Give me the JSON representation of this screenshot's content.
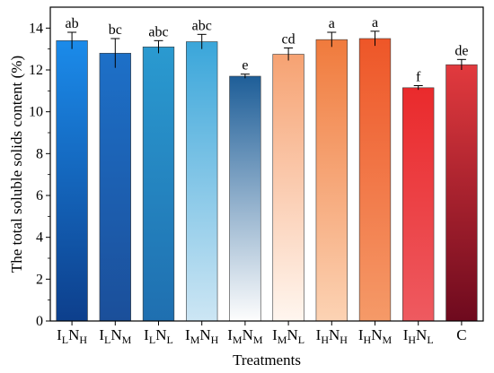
{
  "chart_data": {
    "type": "bar",
    "xlabel": "Treatments",
    "ylabel": "The total soluble solids content (%)",
    "ylim": [
      0,
      15
    ],
    "yticks": [
      0,
      2,
      4,
      6,
      8,
      10,
      12,
      14
    ],
    "grid": false,
    "categories": [
      {
        "main": "I",
        "sub1": "L",
        "mid": "N",
        "sub2": "H"
      },
      {
        "main": "I",
        "sub1": "L",
        "mid": "N",
        "sub2": "M"
      },
      {
        "main": "I",
        "sub1": "L",
        "mid": "N",
        "sub2": "L"
      },
      {
        "main": "I",
        "sub1": "M",
        "mid": "N",
        "sub2": "H"
      },
      {
        "main": "I",
        "sub1": "M",
        "mid": "N",
        "sub2": "M"
      },
      {
        "main": "I",
        "sub1": "M",
        "mid": "N",
        "sub2": "L"
      },
      {
        "main": "I",
        "sub1": "H",
        "mid": "N",
        "sub2": "H"
      },
      {
        "main": "I",
        "sub1": "H",
        "mid": "N",
        "sub2": "M"
      },
      {
        "main": "I",
        "sub1": "H",
        "mid": "N",
        "sub2": "L"
      },
      {
        "main": "C",
        "sub1": "",
        "mid": "",
        "sub2": ""
      }
    ],
    "values": [
      13.4,
      12.8,
      13.1,
      13.35,
      11.7,
      12.75,
      13.45,
      13.5,
      11.15,
      12.25
    ],
    "errors": [
      0.4,
      0.7,
      0.3,
      0.35,
      0.1,
      0.3,
      0.35,
      0.35,
      0.1,
      0.25
    ],
    "significance": [
      "ab",
      "bc",
      "abc",
      "abc",
      "e",
      "cd",
      "a",
      "a",
      "f",
      "de"
    ],
    "colors": [
      {
        "top": "#1b8bea",
        "bottom": "#0d3f8c"
      },
      {
        "top": "#1d70c8",
        "bottom": "#1b4f9a"
      },
      {
        "top": "#2a9ad0",
        "bottom": "#1f6fb0"
      },
      {
        "top": "#3aa6da",
        "bottom": "#cde6f4"
      },
      {
        "top": "#1e5e98",
        "bottom": "#fdfdfd"
      },
      {
        "top": "#f6a272",
        "bottom": "#fff6ef"
      },
      {
        "top": "#f07a3c",
        "bottom": "#fcd3b4"
      },
      {
        "top": "#ee5628",
        "bottom": "#f59a68"
      },
      {
        "top": "#ea2a2c",
        "bottom": "#ee5a60"
      },
      {
        "top": "#e23a3e",
        "bottom": "#6e0a1e"
      }
    ]
  }
}
